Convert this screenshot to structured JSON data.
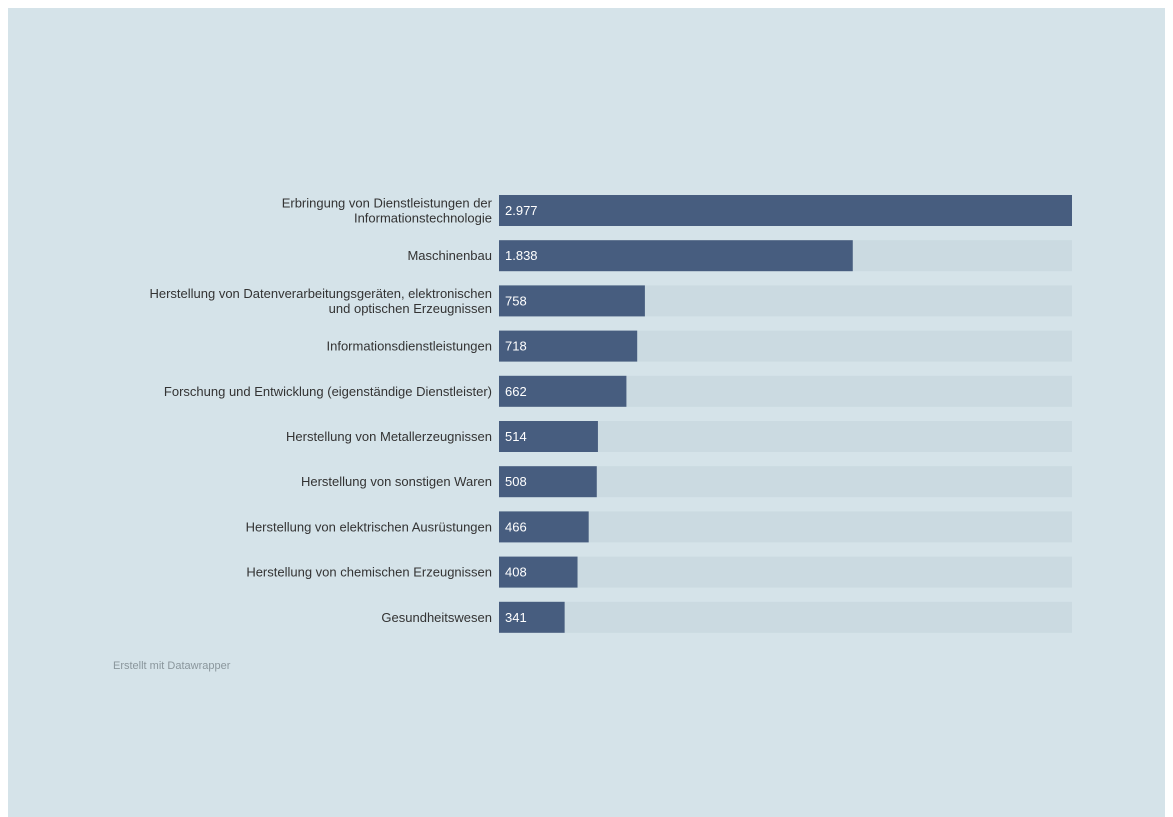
{
  "colors": {
    "background": "#d5e3e9",
    "bar": "#475d7f",
    "track": "#cbdae1",
    "label_text": "#333333",
    "value_text": "#ffffff",
    "credit_text": "#8a969c"
  },
  "credit": "Erstellt mit Datawrapper",
  "chart_data": {
    "type": "bar",
    "orientation": "horizontal",
    "categories": [
      [
        "Erbringung von Dienstleistungen der",
        "Informationstechnologie"
      ],
      [
        "Maschinenbau"
      ],
      [
        "Herstellung von Datenverarbeitungsgeräten, elektronischen",
        "und optischen Erzeugnissen"
      ],
      [
        "Informationsdienstleistungen"
      ],
      [
        "Forschung und Entwicklung (eigenständige Dienstleister)"
      ],
      [
        "Herstellung von Metallerzeugnissen"
      ],
      [
        "Herstellung von sonstigen Waren"
      ],
      [
        "Herstellung von elektrischen Ausrüstungen"
      ],
      [
        "Herstellung von chemischen Erzeugnissen"
      ],
      [
        "Gesundheitswesen"
      ]
    ],
    "values": [
      2977,
      1838,
      758,
      718,
      662,
      514,
      508,
      466,
      408,
      341
    ],
    "value_labels": [
      "2.977",
      "1.838",
      "758",
      "718",
      "662",
      "514",
      "508",
      "466",
      "408",
      "341"
    ],
    "xlim": [
      0,
      2977
    ],
    "grid": false,
    "legend": "none",
    "title": "",
    "xlabel": "",
    "ylabel": ""
  }
}
